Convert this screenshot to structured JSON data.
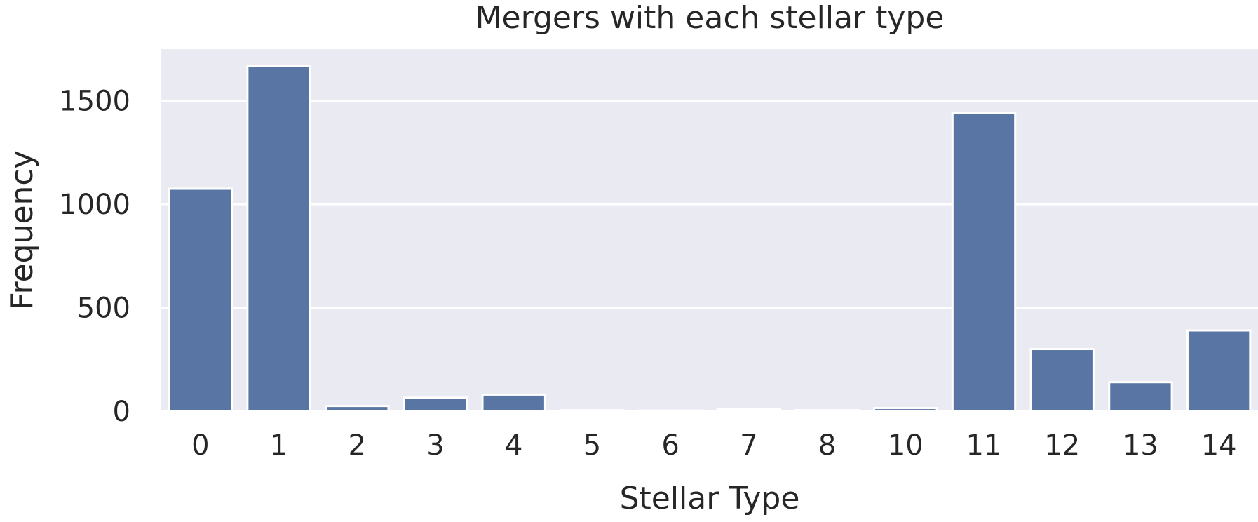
{
  "chart_data": {
    "type": "bar",
    "title": "Mergers with each stellar type",
    "xlabel": "Stellar Type",
    "ylabel": "Frequency",
    "categories": [
      "0",
      "1",
      "2",
      "3",
      "4",
      "5",
      "6",
      "7",
      "8",
      "10",
      "11",
      "12",
      "13",
      "14"
    ],
    "values": [
      1075,
      1670,
      25,
      65,
      80,
      5,
      3,
      10,
      5,
      15,
      1440,
      300,
      140,
      390
    ],
    "ylim": [
      0,
      1750
    ],
    "yticks": [
      0,
      500,
      1000,
      1500
    ],
    "grid": true,
    "colors": {
      "bar": "#5875a4",
      "background": "#eaeaf2",
      "grid": "#ffffff"
    }
  }
}
